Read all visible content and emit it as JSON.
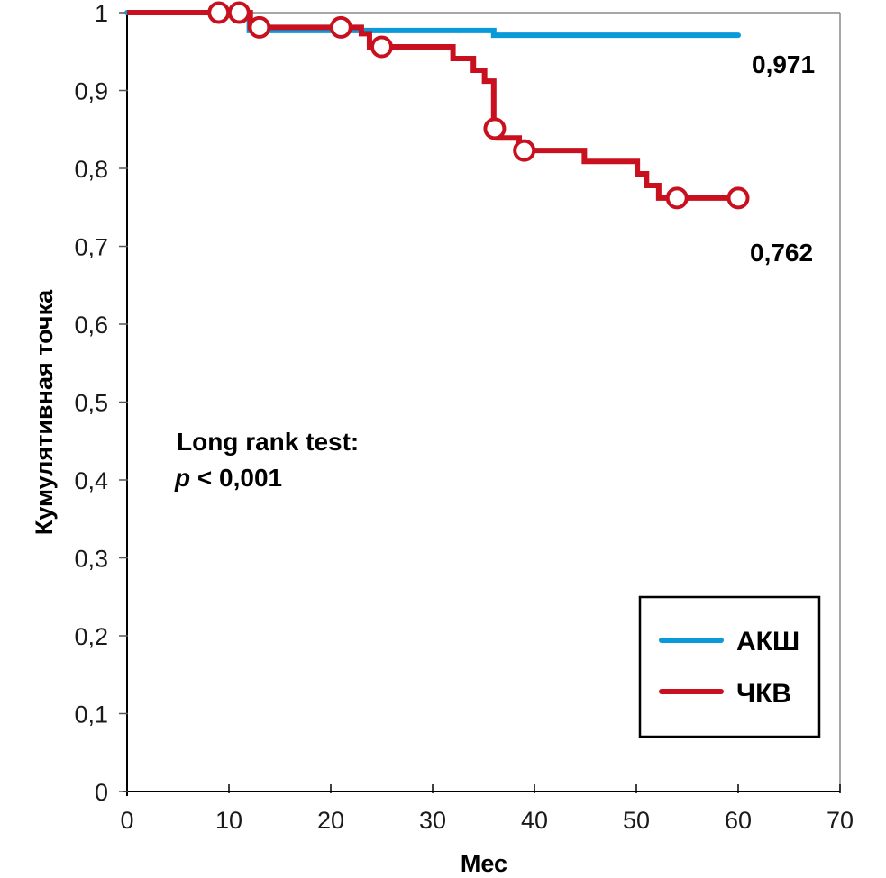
{
  "chart_data": {
    "type": "line",
    "subtype": "kaplan-meier",
    "title": "",
    "xlabel": "Мес",
    "ylabel": "Кумулятивная точка",
    "xlim": [
      0,
      70
    ],
    "ylim": [
      0,
      1
    ],
    "x_ticks": [
      0,
      10,
      20,
      30,
      40,
      50,
      60,
      70
    ],
    "x_tick_labels": [
      "0",
      "10",
      "20",
      "30",
      "40",
      "50",
      "60",
      "70"
    ],
    "y_ticks": [
      0,
      0.1,
      0.2,
      0.3,
      0.4,
      0.5,
      0.6,
      0.7,
      0.8,
      0.9,
      1
    ],
    "y_tick_labels": [
      "0",
      "0,1",
      "0,2",
      "0,3",
      "0,4",
      "0,5",
      "0,6",
      "0,7",
      "0,8",
      "0,9",
      "1"
    ],
    "grid": false,
    "legend_position": "bottom-right",
    "series": [
      {
        "name": "АКШ",
        "color": "#0a9ad9",
        "steps": [
          [
            0,
            1.0
          ],
          [
            12,
            0.977
          ],
          [
            36,
            0.971
          ],
          [
            60,
            0.971
          ]
        ],
        "censored": [],
        "end_label": "0,971"
      },
      {
        "name": "ЧКВ",
        "color": "#c8101e",
        "steps": [
          [
            0,
            1.0
          ],
          [
            12.1,
            0.981
          ],
          [
            23,
            0.973
          ],
          [
            23.8,
            0.956
          ],
          [
            32,
            0.941
          ],
          [
            34,
            0.926
          ],
          [
            35.1,
            0.912
          ],
          [
            36,
            0.851
          ],
          [
            36.4,
            0.839
          ],
          [
            38.5,
            0.823
          ],
          [
            44.9,
            0.809
          ],
          [
            50.1,
            0.793
          ],
          [
            51,
            0.778
          ],
          [
            52.2,
            0.762
          ],
          [
            60,
            0.762
          ]
        ],
        "censored": [
          [
            9,
            1.0
          ],
          [
            11,
            1.0
          ],
          [
            13,
            0.981
          ],
          [
            21,
            0.981
          ],
          [
            25,
            0.956
          ],
          [
            36.1,
            0.851
          ],
          [
            39,
            0.823
          ],
          [
            54,
            0.762
          ],
          [
            60,
            0.762
          ]
        ],
        "end_label": "0,762"
      }
    ],
    "annotations": [
      {
        "text": "Long rank test:"
      },
      {
        "text_italic": "p",
        "text": " < 0,001"
      }
    ]
  }
}
